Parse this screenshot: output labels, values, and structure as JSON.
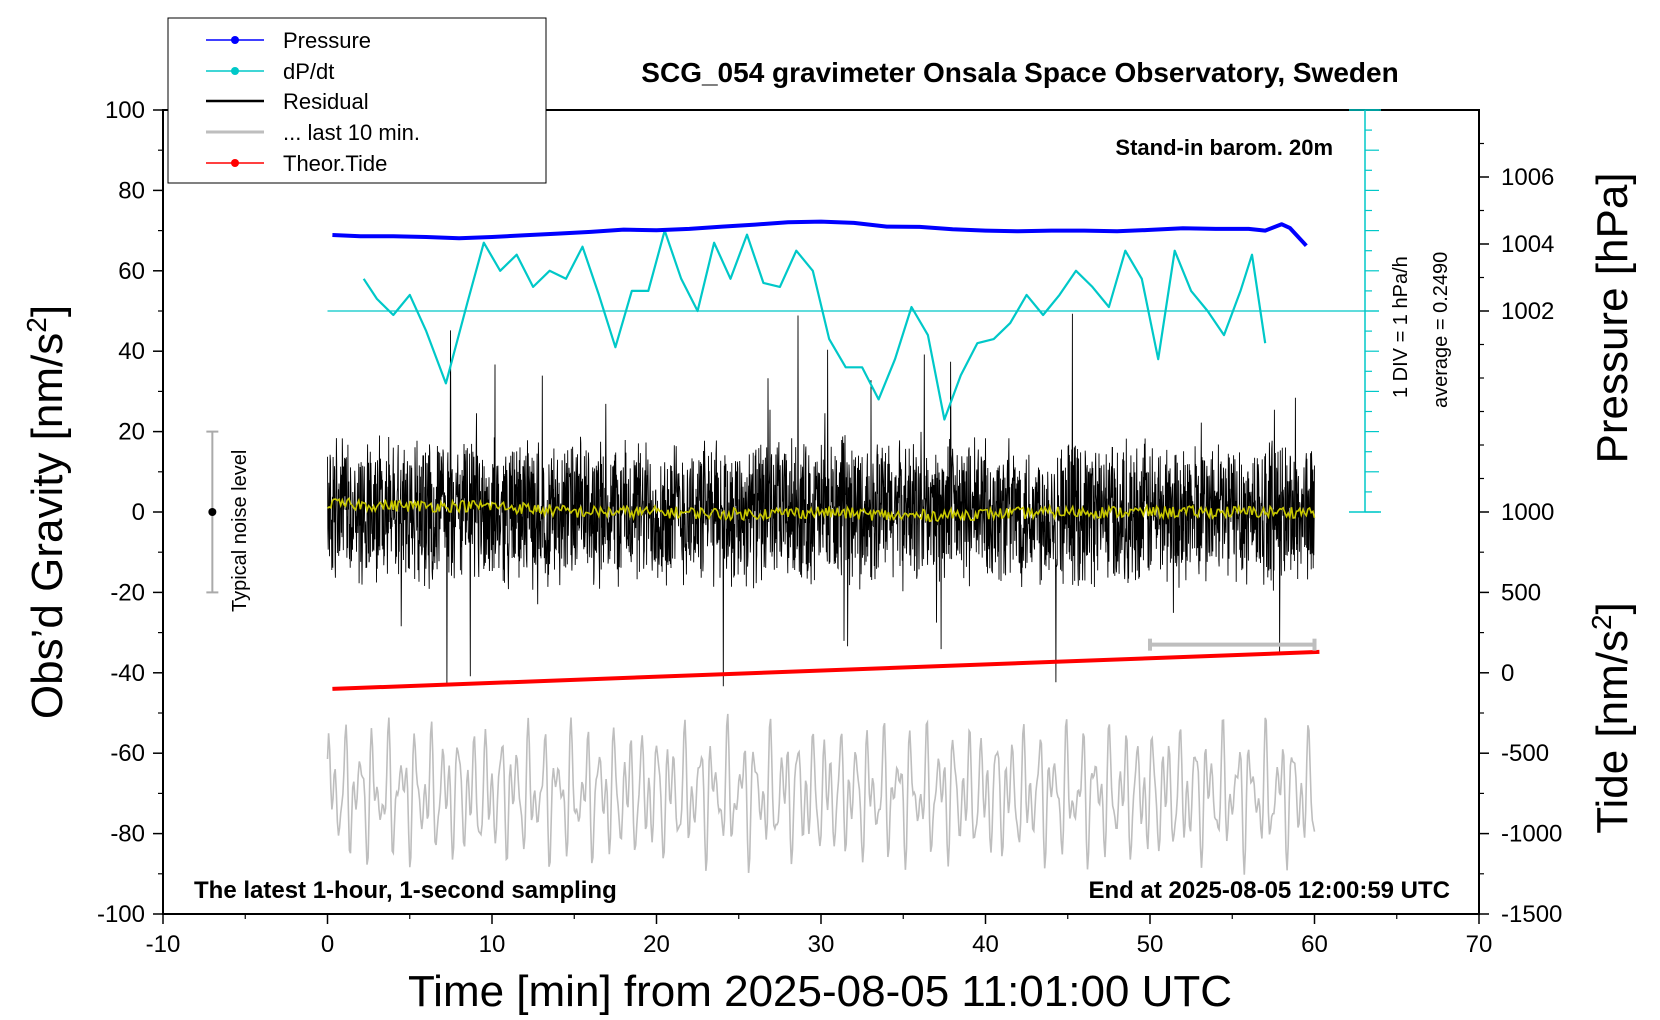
{
  "chart_data": {
    "type": "line",
    "title": "SCG_054 gravimeter Onsala Space Observatory, Sweden",
    "xlabel": "Time [min] from 2025-08-05 11:01:00 UTC",
    "ylabel_left_main": "Obs’d Gravity [nm/s",
    "ylabel_left_sup": "2",
    "ylabel_left_close": "]",
    "ylabel_right_pressure": "Pressure [hPa]",
    "ylabel_right_tide_main": "Tide [nm/s",
    "ylabel_right_tide_sup": "2",
    "ylabel_right_tide_close": "]",
    "xlim": [
      -10,
      70
    ],
    "ylim": [
      -100,
      100
    ],
    "x_ticks": [
      "-10",
      "0",
      "10",
      "20",
      "30",
      "40",
      "50",
      "60",
      "70"
    ],
    "y_ticks": [
      "-100",
      "-80",
      "-60",
      "-40",
      "-20",
      "0",
      "20",
      "40",
      "60",
      "80",
      "100"
    ],
    "pressure_ticks": [
      "1002",
      "1004",
      "1006"
    ],
    "pressure_range": [
      996,
      1008
    ],
    "tide_ticks": [
      "-1500",
      "-1000",
      "-500",
      "0",
      "500",
      "1000"
    ],
    "tide_range": [
      -1500,
      1000
    ],
    "legend": [
      {
        "label": "Pressure",
        "color": "#0000ff",
        "marker": true
      },
      {
        "label": "dP/dt",
        "color": "#00c8c8",
        "marker": true
      },
      {
        "label": "Residual",
        "color": "#000000",
        "marker": false
      },
      {
        "label": "... last 10 min.",
        "color": "#bebebe",
        "marker": false
      },
      {
        "label": "Theor.Tide",
        "color": "#ff0000",
        "marker": true
      }
    ],
    "annotations": {
      "barom": "Stand-in barom. 20m",
      "dpdt_div": "1 DIV = 1 hPa/h",
      "average": "average = 0.2490",
      "noise": "Typical noise level",
      "latest": "The latest 1-hour, 1-second sampling",
      "end": "End at 2025-08-05 12:00:59 UTC"
    },
    "noise_level": {
      "x": -7,
      "center": 0,
      "half_range": 20
    },
    "last10_bar": {
      "x_start": 50,
      "x_end": 60,
      "y": -33
    },
    "dpdt_zero_line_y": 50,
    "series": [
      {
        "name": "Pressure",
        "color": "#0000ff",
        "axis": "pressure",
        "x": [
          0.3,
          2,
          4,
          6,
          8,
          10,
          12,
          14,
          16,
          18,
          20,
          22,
          24,
          26,
          28,
          30,
          32,
          34,
          36,
          38,
          40,
          42,
          44,
          46,
          48,
          50,
          52,
          54,
          56,
          57,
          58,
          58.5,
          59.5
        ],
        "values": [
          1004.27,
          1004.23,
          1004.23,
          1004.21,
          1004.17,
          1004.21,
          1004.26,
          1004.31,
          1004.36,
          1004.43,
          1004.41,
          1004.45,
          1004.52,
          1004.58,
          1004.65,
          1004.67,
          1004.63,
          1004.52,
          1004.51,
          1004.44,
          1004.4,
          1004.38,
          1004.4,
          1004.4,
          1004.38,
          1004.42,
          1004.47,
          1004.45,
          1004.45,
          1004.4,
          1004.59,
          1004.48,
          1003.95
        ]
      },
      {
        "name": "dP/dt",
        "color": "#00c8c8",
        "axis": "left",
        "x": [
          2.2,
          3,
          4,
          5,
          6,
          7.2,
          8.5,
          9.5,
          10.5,
          11.5,
          12.5,
          13.5,
          14.5,
          15.5,
          16.5,
          17.5,
          18.5,
          19.5,
          20.5,
          21.5,
          22.5,
          23.5,
          24.5,
          25.5,
          26.5,
          27.5,
          28.5,
          29.5,
          30.5,
          31.5,
          32.5,
          33.5,
          34.5,
          35.5,
          36.5,
          37.5,
          38.5,
          39.5,
          40.5,
          41.5,
          42.5,
          43.5,
          44.5,
          45.5,
          46.5,
          47.5,
          48.5,
          49.5,
          50.5,
          51.5,
          52.5,
          53.5,
          54.5,
          55.5,
          56.2,
          57
        ],
        "values": [
          58,
          53,
          49,
          54,
          45,
          32,
          52,
          67,
          60,
          64,
          56,
          60,
          58,
          66,
          54,
          41,
          55,
          55,
          70,
          58,
          50,
          67,
          58,
          69,
          57,
          56,
          65,
          60,
          43,
          36,
          36,
          28,
          38,
          51,
          44,
          23,
          34,
          42,
          43,
          47,
          54,
          49,
          54,
          60,
          56,
          51,
          65,
          58,
          38,
          65,
          55,
          50,
          44,
          55,
          64,
          42
        ]
      },
      {
        "name": "Theor.Tide",
        "color": "#ff0000",
        "axis": "tide",
        "x": [
          0.3,
          60.3
        ],
        "values": [
          -100,
          130
        ]
      }
    ],
    "residual": {
      "name": "Residual",
      "color": "#000000",
      "x_range": [
        0,
        60
      ],
      "typical_amplitude": 20,
      "peak_range": [
        -45,
        50
      ]
    },
    "residual_smoothed": {
      "name": "Residual smoothed",
      "color": "#c8c800",
      "x": [
        0,
        5,
        10,
        15,
        20,
        25,
        30,
        35,
        40,
        45,
        50,
        55,
        60
      ],
      "values": [
        2,
        1.5,
        1.5,
        0,
        0,
        -0.5,
        0,
        -1,
        -0.5,
        0,
        0,
        0,
        0
      ]
    },
    "last_10_min": {
      "name": "... last 10 min.",
      "color": "#bebebe",
      "x_range": [
        0,
        60
      ],
      "center": -70,
      "amplitude": 15
    }
  }
}
